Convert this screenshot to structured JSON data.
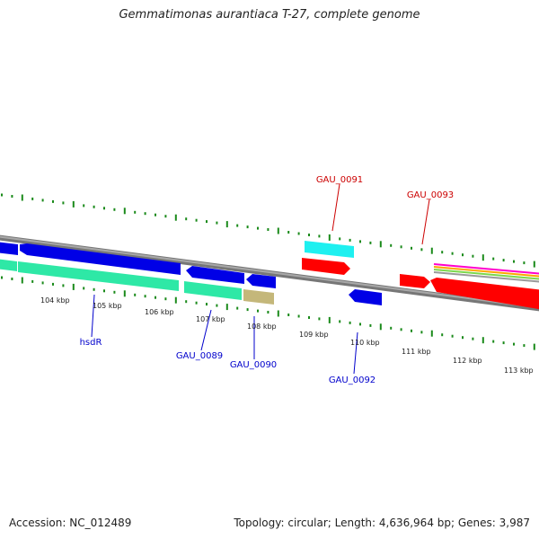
{
  "title": "Gemmatimonas aurantiaca T-27, complete genome",
  "footer": {
    "accession": "Accession: NC_012489",
    "topology": "Topology: circular; Length: 4,636,964 bp; Genes: 3,987"
  },
  "colors": {
    "backbone": "#8a8a8a",
    "tick": "#1a8a1a",
    "forward_cds": "#0000e6",
    "forward_gene": "#2ee8a6",
    "trna": "#1ef0f0",
    "reverse_cds": "#ff0000",
    "pseudo_gene": "#c4b77a",
    "label_forward": "#0000cc",
    "label_reverse": "#cc0000",
    "tick_label": "#222222"
  },
  "kbp_labels": [
    "104 kbp",
    "105 kbp",
    "106 kbp",
    "107 kbp",
    "108 kbp",
    "109 kbp",
    "110 kbp",
    "111 kbp",
    "112 kbp",
    "113 kbp"
  ],
  "gene_labels": {
    "top": [
      {
        "name": "GAU_0091",
        "strand": "reverse"
      },
      {
        "name": "GAU_0093",
        "strand": "reverse"
      }
    ],
    "bottom": [
      {
        "name": "hsdR",
        "strand": "forward"
      },
      {
        "name": "GAU_0089",
        "strand": "forward"
      },
      {
        "name": "GAU_0090",
        "strand": "forward"
      },
      {
        "name": "GAU_0092",
        "strand": "forward"
      }
    ]
  },
  "features": [
    {
      "name": "cds-left-edge",
      "kind": "forward_cds"
    },
    {
      "name": "hsdR-cds",
      "kind": "forward_cds"
    },
    {
      "name": "GAU_0089-cds",
      "kind": "forward_cds"
    },
    {
      "name": "GAU_0090-cds",
      "kind": "forward_cds"
    },
    {
      "name": "gene-left-edge",
      "kind": "forward_gene"
    },
    {
      "name": "hsdR-gene",
      "kind": "forward_gene"
    },
    {
      "name": "GAU_0089-gene",
      "kind": "forward_gene"
    },
    {
      "name": "GAU_0090-gene",
      "kind": "pseudo_gene"
    },
    {
      "name": "GAU_0091-trna",
      "kind": "trna"
    },
    {
      "name": "GAU_0091-cds",
      "kind": "reverse_cds"
    },
    {
      "name": "GAU_0092-cds",
      "kind": "forward_cds"
    },
    {
      "name": "GAU_0093-cds-1",
      "kind": "reverse_cds"
    },
    {
      "name": "GAU_0093-cds-2",
      "kind": "reverse_cds"
    }
  ]
}
